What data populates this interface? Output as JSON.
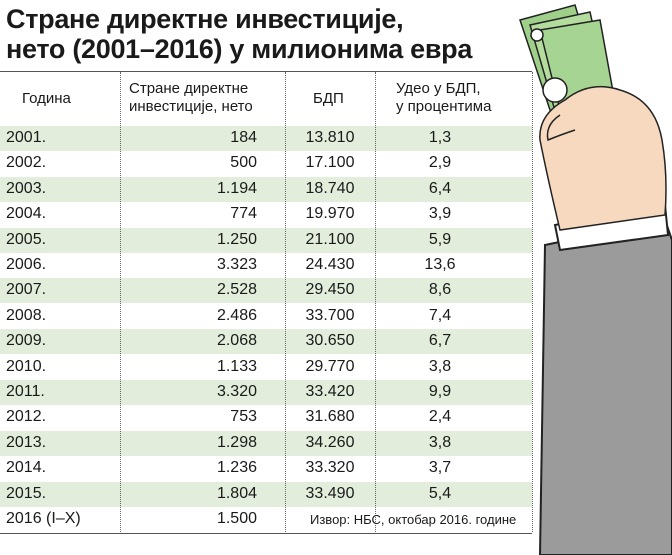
{
  "header": {
    "title": [
      "Стране директне инвестиције,",
      "нето (2001–2016) у милионима евра"
    ]
  },
  "table": {
    "columns": [
      [
        "Година"
      ],
      [
        "Стране директне",
        "инвестиције, нето"
      ],
      [
        "БДП"
      ],
      [
        "Удео у БДП,",
        "у процентима"
      ]
    ],
    "rows": [
      [
        "2001.",
        "184",
        "13.810",
        "1,3"
      ],
      [
        "2002.",
        "500",
        "17.100",
        "2,9"
      ],
      [
        "2003.",
        "1.194",
        "18.740",
        "6,4"
      ],
      [
        "2004.",
        "774",
        "19.970",
        "3,9"
      ],
      [
        "2005.",
        "1.250",
        "21.100",
        "5,9"
      ],
      [
        "2006.",
        "3.323",
        "24.430",
        "13,6"
      ],
      [
        "2007.",
        "2.528",
        "29.450",
        "8,6"
      ],
      [
        "2008.",
        "2.486",
        "33.700",
        "7,4"
      ],
      [
        "2009.",
        "2.068",
        "30.650",
        "6,7"
      ],
      [
        "2010.",
        "1.133",
        "29.770",
        "3,8"
      ],
      [
        "2011.",
        "3.320",
        "33.420",
        "9,9"
      ],
      [
        "2012.",
        "753",
        "31.680",
        "2,4"
      ],
      [
        "2013.",
        "1.298",
        "34.260",
        "3,8"
      ],
      [
        "2014.",
        "1.236",
        "33.320",
        "3,7"
      ],
      [
        "2015.",
        "1.804",
        "33.490",
        "5,4"
      ],
      [
        "2016 (I–X)",
        "1.500"
      ]
    ],
    "source": "Извор: НБС, октобар 2016. године"
  }
}
